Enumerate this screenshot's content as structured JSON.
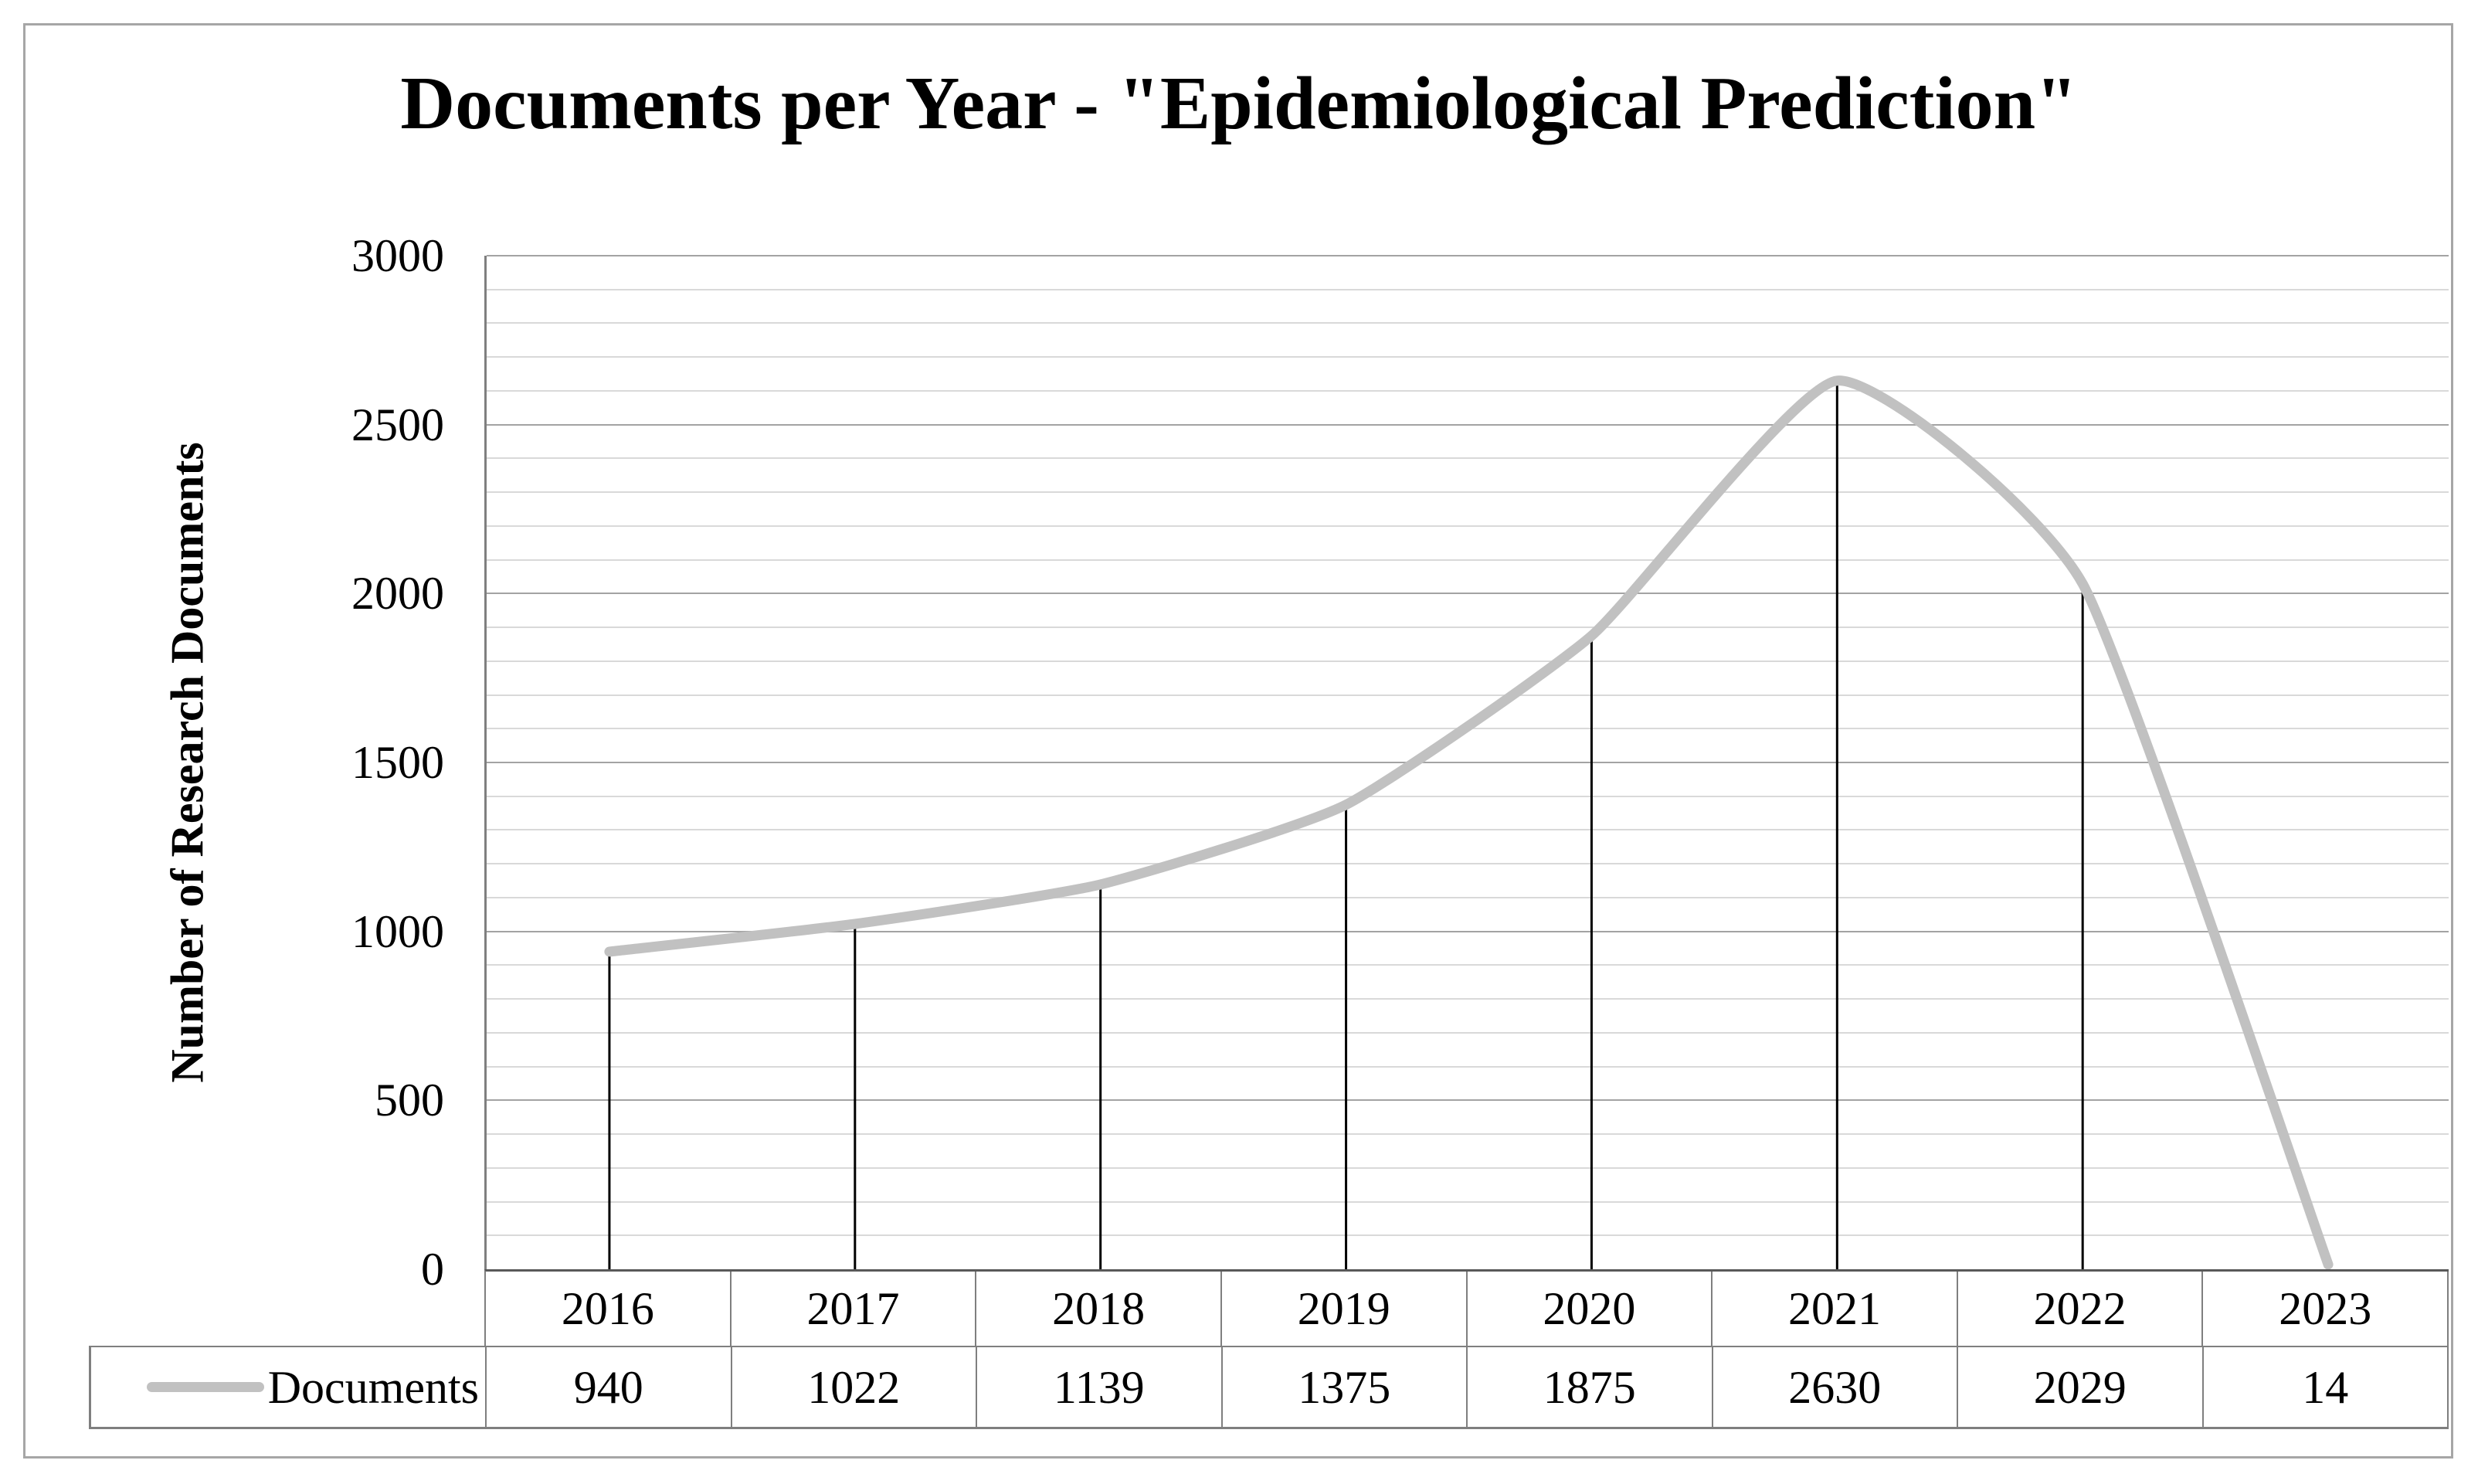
{
  "chart_data": {
    "type": "line",
    "title": "Documents per Year - \"Epidemiological Prediction\"",
    "xlabel": "",
    "ylabel": "Number of Research Documents",
    "categories": [
      "2016",
      "2017",
      "2018",
      "2019",
      "2020",
      "2021",
      "2022",
      "2023"
    ],
    "series": [
      {
        "name": "Documents",
        "values": [
          940,
          1022,
          1139,
          1375,
          1875,
          2630,
          2029,
          14
        ]
      }
    ],
    "ylim": [
      0,
      3000
    ],
    "y_ticks": [
      0,
      500,
      1000,
      1500,
      2000,
      2500,
      3000
    ],
    "y_major_step": 500,
    "y_minor_step": 100,
    "grid": "horizontal minor+major",
    "legend_position": "data-table-left",
    "smoothed_line": true,
    "drop_lines": true
  },
  "colors": {
    "series_line": "#c1c1c1",
    "drop_line": "#000000",
    "minor_grid": "#d9d9d9",
    "major_grid": "#a3a3a3",
    "axis_line": "#595959",
    "table_border": "#7f7f7f",
    "chart_border": "#a6a6a6",
    "text": "#000000",
    "background": "#ffffff"
  }
}
